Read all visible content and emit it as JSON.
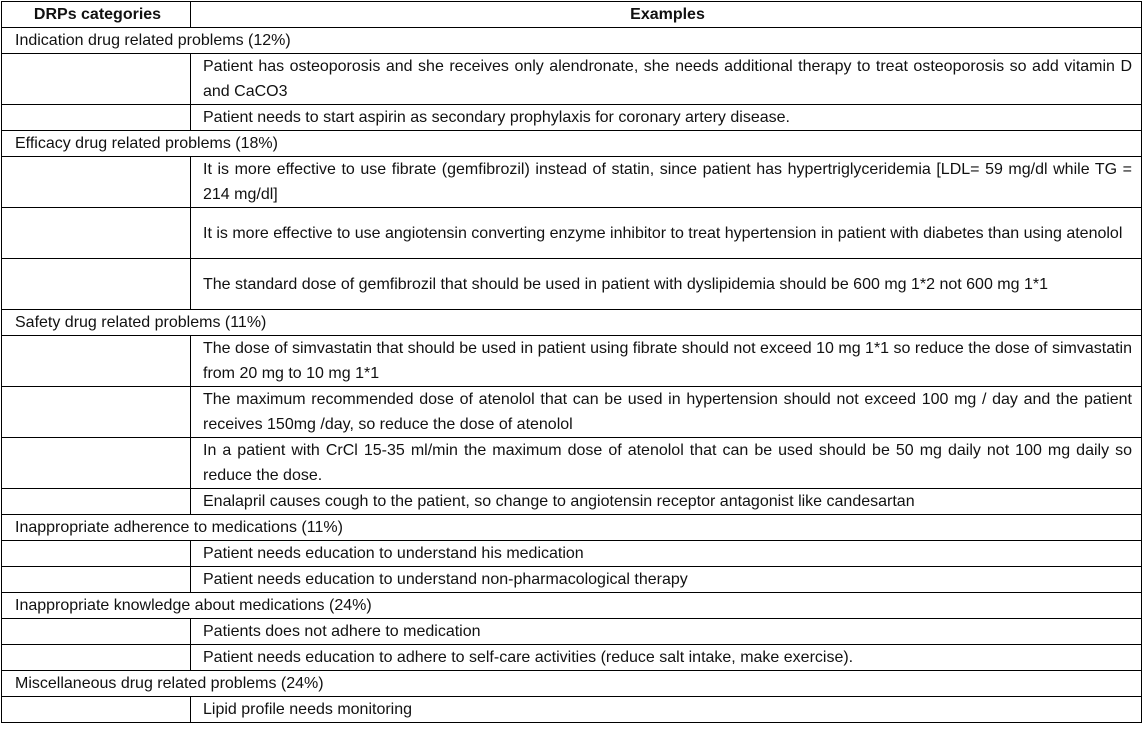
{
  "table": {
    "headers": [
      "DRPs categories",
      "Examples"
    ],
    "categories": [
      {
        "label": "Indication drug related problems (12%)",
        "examples": [
          "Patient has osteoporosis and she receives only alendronate, she needs additional therapy to treat osteoporosis so add vitamin D and CaCO3",
          "Patient needs to start aspirin as secondary prophylaxis for coronary artery disease."
        ]
      },
      {
        "label": "Efficacy drug related problems (18%)",
        "examples": [
          "It is more effective to use fibrate (gemfibrozil) instead of statin, since patient has hypertriglyceridemia [LDL= 59 mg/dl while TG = 214 mg/dl]",
          "It is more effective to use angiotensin converting enzyme inhibitor to treat hypertension in patient with diabetes than using atenolol",
          "The standard dose of gemfibrozil that should be used in patient with dyslipidemia should be 600 mg 1*2 not 600 mg 1*1"
        ]
      },
      {
        "label": "Safety drug related problems (11%)",
        "examples": [
          "The dose of simvastatin that should be used in patient using fibrate should not exceed 10 mg 1*1 so reduce the dose of simvastatin from 20 mg to 10 mg 1*1",
          "The maximum recommended dose of atenolol that can be used in hypertension should not exceed 100 mg / day and the patient receives 150mg /day, so reduce the dose of atenolol",
          "In a patient with CrCl 15-35 ml/min the maximum dose of atenolol that can be used should be 50 mg daily not 100 mg daily so reduce the dose.",
          "Enalapril causes cough to the patient, so change to angiotensin receptor antagonist like candesartan"
        ]
      },
      {
        "label": "Inappropriate adherence to medications (11%)",
        "examples": [
          "Patient needs education to understand his medication",
          "Patient needs education to understand non-pharmacological therapy"
        ]
      },
      {
        "label": "Inappropriate knowledge about medications (24%)",
        "examples": [
          "Patients does not adhere to medication",
          "Patient needs education to adhere to self-care activities (reduce salt intake, make exercise)."
        ]
      },
      {
        "label": "Miscellaneous drug related problems (24%)",
        "examples": [
          "Lipid profile needs monitoring"
        ]
      }
    ]
  }
}
